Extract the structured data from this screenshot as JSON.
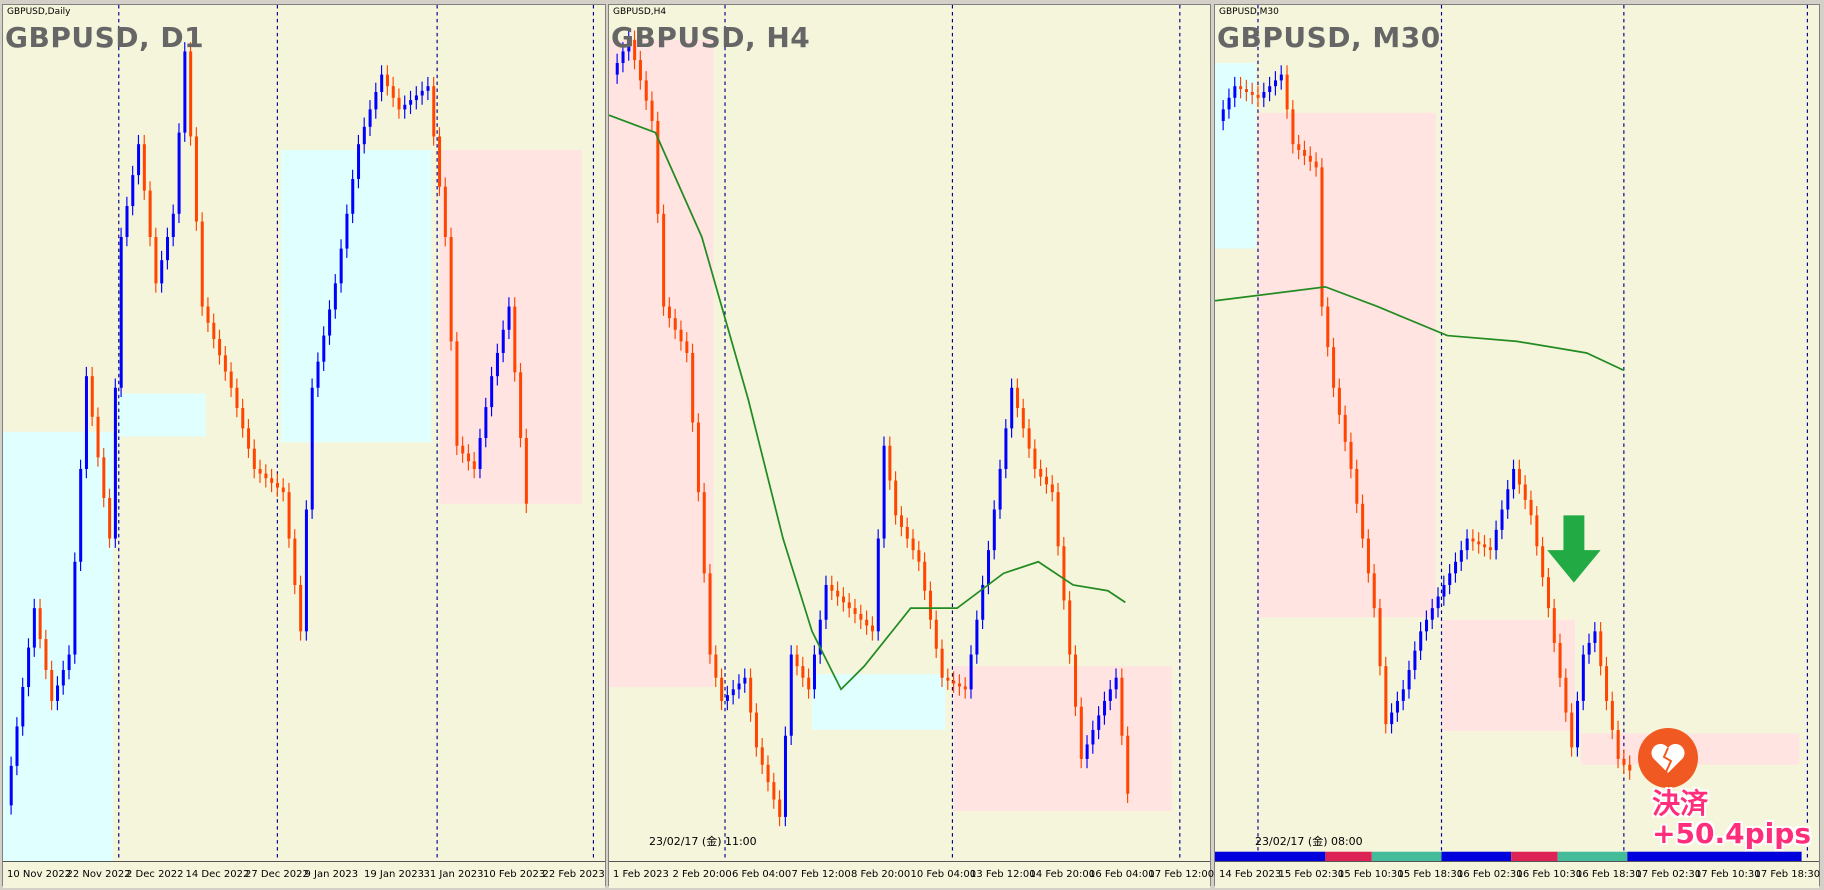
{
  "panels": [
    {
      "header": "GBPUSD,Daily",
      "title": "GBPUSD, D1",
      "x_labels": [
        "10 Nov 2022",
        "22 Nov 2022",
        "2 Dec 2022",
        "14 Dec 2022",
        "27 Dec 2022",
        "9 Jan 2023",
        "19 Jan 2023",
        "31 Jan 2023",
        "10 Feb 2023",
        "22 Feb 2023"
      ]
    },
    {
      "header": "GBPUSD,H4",
      "title": "GBPUSD, H4",
      "timestamp": "23/02/17 (金) 11:00",
      "x_labels": [
        "1 Feb 2023",
        "2 Feb 20:00",
        "6 Feb 04:00",
        "7 Feb 12:00",
        "8 Feb 20:00",
        "10 Feb 04:00",
        "13 Feb 12:00",
        "14 Feb 20:00",
        "16 Feb 04:00",
        "17 Feb 12:00"
      ]
    },
    {
      "header": "GBPUSD,M30",
      "title": "GBPUSD, M30",
      "timestamp": "23/02/17 (金) 08:00",
      "x_labels": [
        "14 Feb 2023",
        "15 Feb 02:30",
        "15 Feb 10:30",
        "15 Feb 18:30",
        "16 Feb 02:30",
        "16 Feb 10:30",
        "16 Feb 18:30",
        "17 Feb 02:30",
        "17 Feb 10:30",
        "17 Feb 18:30"
      ]
    }
  ],
  "annotation": {
    "line1": "決済",
    "line2": "+50.4pips"
  }
}
